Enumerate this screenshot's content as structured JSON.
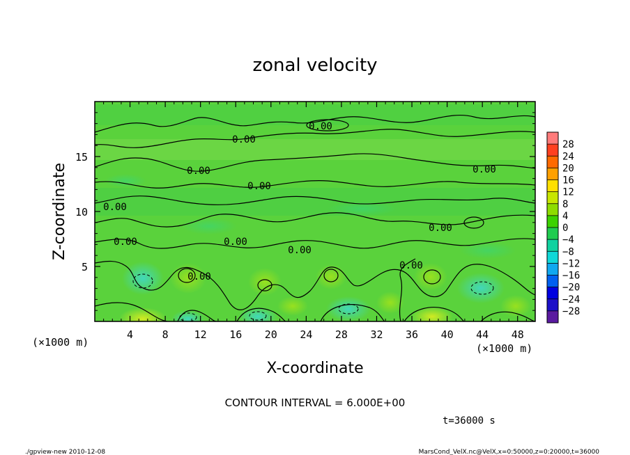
{
  "chart_data": {
    "type": "heatmap",
    "title": "zonal velocity",
    "xlabel": "X-coordinate",
    "ylabel": "Z-coordinate",
    "x_unit": "(×1000 m)",
    "y_unit": "(×1000 m)",
    "xlim": [
      0,
      50
    ],
    "ylim": [
      0,
      20
    ],
    "x_ticks": [
      "4",
      "8",
      "12",
      "16",
      "20",
      "24",
      "28",
      "32",
      "36",
      "40",
      "44",
      "48"
    ],
    "y_ticks": [
      "5",
      "10",
      "15"
    ],
    "colorbar_levels": [
      "28",
      "24",
      "20",
      "16",
      "12",
      "8",
      "4",
      "0",
      "−4",
      "−8",
      "−12",
      "−16",
      "−20",
      "−24",
      "−28"
    ],
    "colorbar_colors": [
      "#ff7b7b",
      "#ff4020",
      "#ff6a00",
      "#ffa000",
      "#ffe000",
      "#c8e600",
      "#8edc00",
      "#3cd200",
      "#20cc50",
      "#10d2a0",
      "#10d8d8",
      "#10a8f0",
      "#0060f0",
      "#0000e0",
      "#1c10c8",
      "#5a1aa0"
    ],
    "contour_interval": "CONTOUR INTERVAL = 6.000E+00",
    "contour_labels": [
      "0.00",
      "0.00",
      "0.00",
      "0.00",
      "0.00",
      "0.00",
      "0.00",
      "0.00",
      "0.00",
      "0.00",
      "0.00",
      "0.00"
    ],
    "time_label": "t=36000 s",
    "footer_left": "./gpview-new  2010-12-08",
    "footer_right": "MarsCond_VelX.nc@VelX,x=0:50000,z=0:20000,t=36000"
  }
}
